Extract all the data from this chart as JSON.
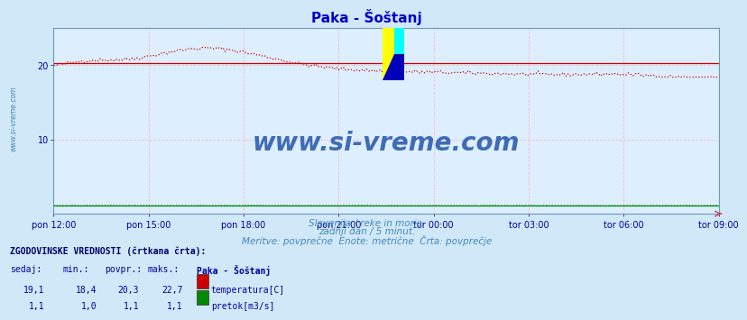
{
  "title": "Paka - Šoštanj",
  "subtitle1": "Slovenija / reke in morje.",
  "subtitle2": "zadnji dan / 5 minut.",
  "subtitle3": "Meritve: povprečne  Enote: metrične  Črta: povprečje",
  "xlabel_ticks": [
    "pon 12:00",
    "pon 15:00",
    "pon 18:00",
    "pon 21:00",
    "tor 00:00",
    "tor 03:00",
    "tor 06:00",
    "tor 09:00"
  ],
  "yticks": [
    10,
    20
  ],
  "ylim_min": 0,
  "ylim_max": 25,
  "xlim": [
    0,
    287
  ],
  "background_color": "#d0e8f8",
  "plot_bg_color": "#ddeeff",
  "grid_color": "#ffbbbb",
  "title_color": "#0000cc",
  "subtitle_color": "#4488bb",
  "text_color": "#000099",
  "axis_color": "#6699bb",
  "temp_line_color": "#cc0000",
  "flow_line_color": "#008800",
  "avg_temp_color": "#cc0000",
  "avg_flow_color": "#008800",
  "watermark_text": "www.si-vreme.com",
  "watermark_color": "#2255aa",
  "legend_header": "ZGODOVINSKE VREDNOSTI (črtkana črta):",
  "legend_cols": [
    "sedaj:",
    "min.:",
    "povpr.:",
    "maks.:"
  ],
  "legend_series": [
    {
      "label": "temperatura[C]",
      "color": "#cc0000",
      "sedaj": "19,1",
      "min": "18,4",
      "povpr": "20,3",
      "maks": "22,7"
    },
    {
      "label": "pretok[m3/s]",
      "color": "#008800",
      "sedaj": "1,1",
      "min": "1,0",
      "povpr": "1,1",
      "maks": "1,1"
    }
  ],
  "series_name": "Paka - Šoštanj",
  "n_points": 288,
  "temp_avg": 20.3,
  "flow_avg": 1.1
}
